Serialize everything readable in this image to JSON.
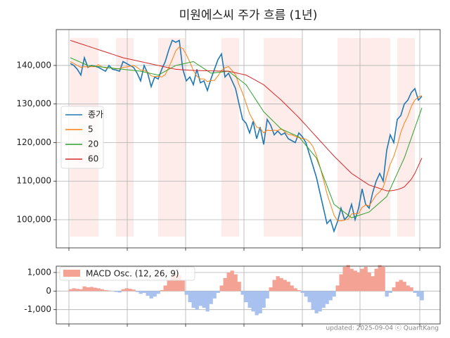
{
  "chart_data": [
    {
      "type": "line",
      "title": "미원에스씨 주가 흐름 (1년)",
      "xlim": [
        -4,
        105.2
      ],
      "xticks": [
        -0.4,
        16.2,
        32.8,
        49.4,
        66,
        82.4,
        99.4
      ],
      "ylim": [
        92700,
        149300
      ],
      "yticks": [
        {
          "value": 100000,
          "label": "100,000"
        },
        {
          "value": 110000,
          "label": "110,000"
        },
        {
          "value": 120000,
          "label": "120,000"
        },
        {
          "value": 130000,
          "label": "130,000"
        },
        {
          "value": 140000,
          "label": "140,000"
        }
      ],
      "grid": true,
      "legend": "left",
      "highlight_color": "#fdecea",
      "highlight_spans": [
        [
          0,
          8
        ],
        [
          13,
          18
        ],
        [
          25,
          32.6
        ],
        [
          43,
          48
        ],
        [
          55,
          66
        ],
        [
          76,
          91
        ],
        [
          93,
          98
        ]
      ],
      "series": [
        {
          "name": "종가",
          "color": "#1f77b4",
          "values": [
            140500,
            140000,
            139000,
            137500,
            142000,
            139500,
            140000,
            139800,
            139500,
            139000,
            138500,
            140000,
            139000,
            138800,
            138500,
            141000,
            140500,
            140000,
            139500,
            138000,
            136000,
            140000,
            138000,
            134500,
            137000,
            136500,
            139000,
            141000,
            144000,
            146500,
            146000,
            146500,
            139000,
            136000,
            137000,
            135000,
            139000,
            135500,
            136000,
            133500,
            136500,
            139000,
            141500,
            143000,
            137000,
            138000,
            136000,
            134000,
            130000,
            126000,
            125000,
            122500,
            125500,
            121000,
            124000,
            119500,
            126000,
            124500,
            122000,
            123000,
            122000,
            122500,
            121000,
            120500,
            120000,
            122500,
            121500,
            120000,
            117000,
            114000,
            111000,
            107000,
            103000,
            99000,
            100000,
            97000,
            99500,
            103000,
            100000,
            101000,
            104000,
            100000,
            103000,
            108000,
            104000,
            103000,
            107000,
            110000,
            112000,
            110000,
            118000,
            122000,
            120000,
            126000,
            127000,
            130000,
            131000,
            133000,
            134000,
            131000,
            132000
          ]
        },
        {
          "name": "5",
          "color": "#ff7f0e",
          "values": [
            141000,
            140500,
            140000,
            139500,
            139700,
            139600,
            139700,
            139700,
            140200,
            139600,
            139400,
            139400,
            139300,
            139100,
            139200,
            139500,
            139600,
            139800,
            140000,
            139500,
            138800,
            138700,
            138300,
            137300,
            137100,
            137200,
            137000,
            137600,
            139500,
            141500,
            143800,
            144800,
            144400,
            142800,
            140900,
            138700,
            137200,
            136500,
            136500,
            135800,
            136100,
            136100,
            137300,
            138700,
            139400,
            139700,
            138700,
            137600,
            135000,
            132800,
            130200,
            127500,
            125800,
            124000,
            123700,
            122500,
            123200,
            123100,
            123200,
            123100,
            123600,
            122800,
            122100,
            122000,
            121600,
            121300,
            121100,
            120900,
            120200,
            119000,
            116700,
            113800,
            110400,
            106800,
            104000,
            101200,
            99700,
            99700,
            99900,
            100100,
            101500,
            101600,
            101600,
            103200,
            103800,
            103600,
            105000,
            106400,
            107200,
            108400,
            111400,
            114400,
            116400,
            119200,
            122600,
            125000,
            126800,
            129400,
            131000,
            131800,
            132200
          ]
        },
        {
          "name": "20",
          "color": "#2ca02c",
          "values": [
            142000,
            141600,
            141200,
            140800,
            140400,
            140000,
            139900,
            139800,
            139700,
            139600,
            139500,
            139400,
            139300,
            139200,
            139100,
            139000,
            138900,
            138800,
            138700,
            138600,
            138500,
            138300,
            138100,
            137900,
            137700,
            137500,
            138000,
            138500,
            139000,
            139500,
            140000,
            140200,
            140400,
            140600,
            140800,
            141000,
            140400,
            139800,
            139200,
            138600,
            138000,
            138100,
            138200,
            138300,
            138400,
            138500,
            137800,
            137100,
            136400,
            135700,
            135000,
            133600,
            132200,
            130800,
            129400,
            128000,
            127100,
            126200,
            125300,
            124400,
            123500,
            123100,
            122700,
            122300,
            121900,
            121500,
            120400,
            119300,
            118200,
            117100,
            116000,
            113600,
            111200,
            108800,
            106400,
            104000,
            103300,
            102600,
            101900,
            101200,
            100500,
            100800,
            101100,
            101400,
            101700,
            102000,
            102800,
            103600,
            104400,
            105200,
            106000,
            108000,
            110000,
            112000,
            114000,
            116000,
            118600,
            121200,
            123800,
            126400,
            129000
          ]
        },
        {
          "name": "60",
          "color": "#d62728",
          "values": [
            146500,
            146200,
            145900,
            145600,
            145300,
            145000,
            144700,
            144400,
            144100,
            143800,
            143500,
            143200,
            142900,
            142600,
            142300,
            142000,
            141800,
            141600,
            141400,
            141200,
            141000,
            140800,
            140600,
            140400,
            140200,
            140000,
            139800,
            139600,
            139400,
            139200,
            139000,
            138940,
            138880,
            138820,
            138760,
            138700,
            138680,
            138660,
            138640,
            138620,
            138600,
            138580,
            138560,
            138540,
            138520,
            138500,
            138300,
            138100,
            137900,
            137700,
            137500,
            137000,
            136500,
            136000,
            135500,
            135000,
            134200,
            133400,
            132600,
            131800,
            131000,
            130100,
            129200,
            128300,
            127400,
            126500,
            125500,
            124500,
            123500,
            122500,
            121500,
            120500,
            119500,
            118500,
            117500,
            116500,
            115600,
            114700,
            113800,
            112900,
            112000,
            111400,
            110800,
            110200,
            109600,
            109000,
            108700,
            108400,
            108100,
            107800,
            107500,
            107500,
            107600,
            107800,
            108100,
            108500,
            109500,
            110500,
            112000,
            114000,
            116000
          ]
        }
      ]
    },
    {
      "type": "area",
      "xlim": [
        -4,
        105.2
      ],
      "xticks": [
        -0.4,
        16.2,
        32.8,
        49.4,
        66,
        82.4,
        99.4
      ],
      "ylim": [
        -1770,
        1340
      ],
      "yticks": [
        {
          "value": -1000,
          "label": "-1,000"
        },
        0,
        {
          "value": 1000,
          "label": "1,000"
        }
      ],
      "grid": true,
      "legend": "upper left",
      "annotation": "updated: 2025-09-04 ⓒ QuantKang",
      "series": [
        {
          "name": "MACD Osc. (12, 26, 9)",
          "color": "#f4a294",
          "negative_color": "#a9c1ee",
          "values": [
            100,
            150,
            120,
            100,
            250,
            200,
            220,
            180,
            150,
            100,
            50,
            30,
            0,
            -50,
            -80,
            100,
            150,
            120,
            80,
            -50,
            -150,
            -100,
            -250,
            -400,
            -300,
            -150,
            50,
            300,
            600,
            800,
            900,
            850,
            600,
            -200,
            -600,
            -900,
            -1000,
            -800,
            -900,
            -1100,
            -700,
            -400,
            -100,
            300,
            700,
            1000,
            1100,
            900,
            500,
            -200,
            -600,
            -900,
            -1100,
            -1300,
            -1200,
            -900,
            -400,
            200,
            600,
            800,
            700,
            600,
            500,
            300,
            150,
            50,
            -100,
            -300,
            -600,
            -1000,
            -1200,
            -1100,
            -900,
            -700,
            -500,
            -300,
            300,
            900,
            1300,
            1400,
            1200,
            1100,
            1000,
            1200,
            1300,
            1000,
            800,
            1200,
            1400,
            1300,
            -300,
            -100,
            200,
            500,
            600,
            500,
            300,
            200,
            -100,
            -300,
            -500
          ]
        }
      ]
    }
  ]
}
